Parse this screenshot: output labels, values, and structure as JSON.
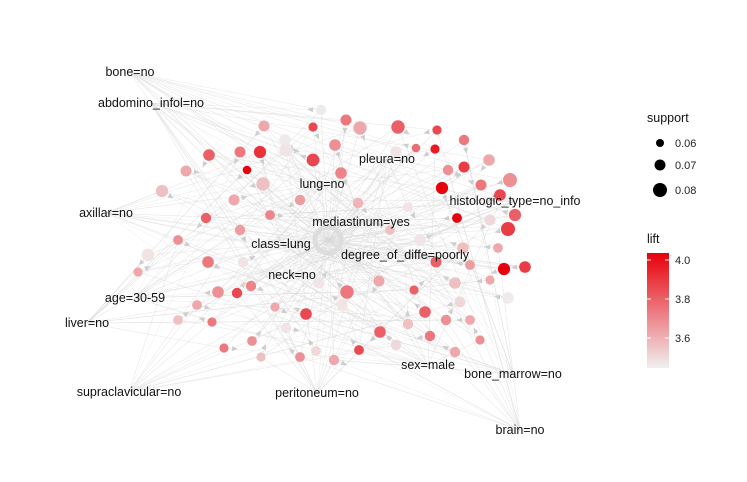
{
  "items": [
    "bone=no",
    "abdomino_infol=no",
    "axillar=no",
    "age=30-59",
    "liver=no",
    "supraclavicular=no",
    "peritoneum=no",
    "brain=no",
    "bone_marrow=no",
    "sex=male",
    "neck=no",
    "degree_of_diffe=poorly",
    "class=lung",
    "mediastinum=yes",
    "lung=no",
    "pleura=no",
    "histologic_type=no_info"
  ],
  "legend": {
    "support": {
      "title": "support",
      "entries": [
        "0.06",
        "0.07",
        "0.08"
      ]
    },
    "lift": {
      "title": "lift",
      "ticks": [
        "4.0",
        "3.8",
        "3.6"
      ],
      "range": [
        3.45,
        4.05
      ],
      "color_low": "#f0f0f0",
      "color_high": "#e8000b"
    }
  },
  "colors": {
    "edge": "#d9d9d9",
    "arrow": "#cccccc",
    "hub": "#dddddd"
  }
}
